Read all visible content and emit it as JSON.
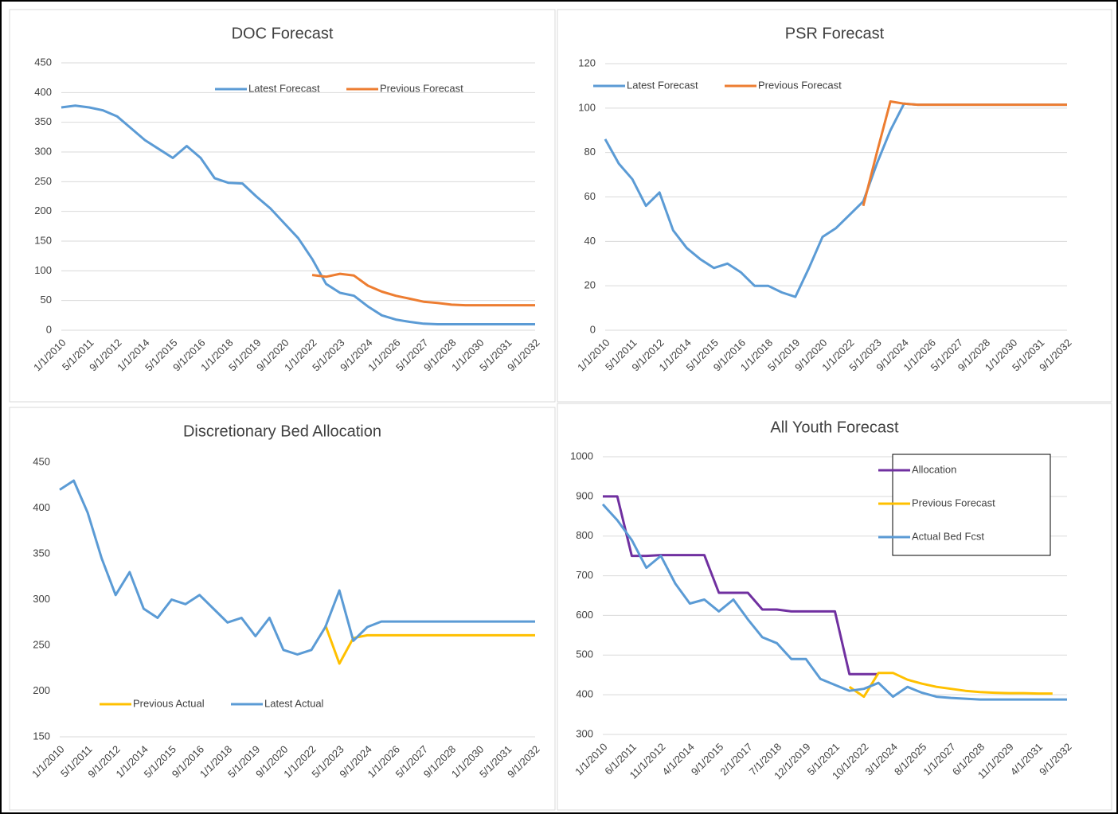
{
  "chart_data": [
    {
      "type": "line",
      "title": "DOC Forecast",
      "categories": [
        "1/1/2010",
        null,
        "5/1/2011",
        null,
        "9/1/2012",
        null,
        "1/1/2014",
        null,
        "5/1/2015",
        null,
        "9/1/2016",
        null,
        "1/1/2018",
        null,
        "5/1/2019",
        null,
        "9/1/2020",
        null,
        "1/1/2022",
        null,
        "5/1/2023",
        null,
        "9/1/2024",
        null,
        "1/1/2026",
        null,
        "5/1/2027",
        null,
        "9/1/2028",
        null,
        "1/1/2030",
        null,
        "5/1/2031",
        null,
        "9/1/2032"
      ],
      "series": [
        {
          "name": "Latest Forecast",
          "color": "#5b9bd5",
          "values": [
            375,
            378,
            375,
            370,
            360,
            340,
            320,
            305,
            290,
            310,
            290,
            256,
            248,
            247,
            225,
            205,
            180,
            155,
            120,
            78,
            63,
            58,
            40,
            25,
            18,
            14,
            11,
            10,
            10,
            10,
            10,
            10,
            10,
            10,
            10
          ]
        },
        {
          "name": "Previous Forecast",
          "color": "#ed7d31",
          "values": [
            null,
            null,
            null,
            null,
            null,
            null,
            null,
            null,
            null,
            null,
            null,
            null,
            null,
            null,
            null,
            null,
            null,
            null,
            93,
            90,
            95,
            92,
            75,
            65,
            58,
            53,
            48,
            46,
            43,
            42,
            42,
            42,
            42,
            42,
            42
          ]
        }
      ],
      "ylim": [
        0,
        450
      ],
      "yticks": [
        0,
        50,
        100,
        150,
        200,
        250,
        300,
        350,
        400,
        450
      ],
      "grid": true,
      "legend": "top-right"
    },
    {
      "type": "line",
      "title": "PSR Forecast",
      "categories": [
        "1/1/2010",
        null,
        "5/1/2011",
        null,
        "9/1/2012",
        null,
        "1/1/2014",
        null,
        "5/1/2015",
        null,
        "9/1/2016",
        null,
        "1/1/2018",
        null,
        "5/1/2019",
        null,
        "9/1/2020",
        null,
        "1/1/2022",
        null,
        "5/1/2023",
        null,
        "9/1/2024",
        null,
        "1/1/2026",
        null,
        "5/1/2027",
        null,
        "9/1/2028",
        null,
        "1/1/2030",
        null,
        "5/1/2031",
        null,
        "9/1/2032"
      ],
      "series": [
        {
          "name": "Latest Forecast",
          "color": "#5b9bd5",
          "values": [
            86,
            75,
            68,
            56,
            62,
            45,
            37,
            32,
            28,
            30,
            26,
            20,
            20,
            17,
            15,
            28,
            42,
            46,
            52,
            58,
            75,
            90,
            102,
            101.5,
            101.5,
            101.5,
            101.5,
            101.5,
            101.5,
            101.5,
            101.5,
            101.5,
            101.5,
            101.5,
            101.5
          ]
        },
        {
          "name": "Previous Forecast",
          "color": "#ed7d31",
          "values": [
            null,
            null,
            null,
            null,
            null,
            null,
            null,
            null,
            null,
            null,
            null,
            null,
            null,
            null,
            null,
            null,
            null,
            null,
            null,
            56,
            80,
            103,
            102,
            101.5,
            101.5,
            101.5,
            101.5,
            101.5,
            101.5,
            101.5,
            101.5,
            101.5,
            101.5,
            101.5,
            101.5
          ]
        }
      ],
      "ylim": [
        0,
        120
      ],
      "yticks": [
        0,
        20,
        40,
        60,
        80,
        100,
        120
      ],
      "grid": true,
      "legend": "top-left"
    },
    {
      "type": "line",
      "title": "Discretionary Bed Allocation",
      "categories": [
        "1/1/2010",
        null,
        "5/1/2011",
        null,
        "9/1/2012",
        null,
        "1/1/2014",
        null,
        "5/1/2015",
        null,
        "9/1/2016",
        null,
        "1/1/2018",
        null,
        "5/1/2019",
        null,
        "9/1/2020",
        null,
        "1/1/2022",
        null,
        "5/1/2023",
        null,
        "9/1/2024",
        null,
        "1/1/2026",
        null,
        "5/1/2027",
        null,
        "9/1/2028",
        null,
        "1/1/2030",
        null,
        "5/1/2031",
        null,
        "9/1/2032"
      ],
      "series": [
        {
          "name": "Previous Actual",
          "color": "#ffc000",
          "values": [
            null,
            null,
            null,
            null,
            null,
            null,
            null,
            null,
            null,
            null,
            null,
            null,
            null,
            null,
            null,
            null,
            null,
            null,
            null,
            272,
            230,
            258,
            261,
            261,
            261,
            261,
            261,
            261,
            261,
            261,
            261,
            261,
            261,
            261,
            261
          ]
        },
        {
          "name": "Latest Actual",
          "color": "#5b9bd5",
          "values": [
            420,
            430,
            395,
            345,
            305,
            330,
            290,
            280,
            300,
            295,
            305,
            290,
            275,
            280,
            260,
            280,
            245,
            240,
            245,
            270,
            310,
            255,
            270,
            276,
            276,
            276,
            276,
            276,
            276,
            276,
            276,
            276,
            276,
            276,
            276
          ]
        }
      ],
      "ylim": [
        150,
        450
      ],
      "yticks": [
        150,
        200,
        250,
        300,
        350,
        400,
        450
      ],
      "grid": false,
      "legend": "bottom"
    },
    {
      "type": "line",
      "title": "All Youth Forecast",
      "categories": [
        "1/1/2010",
        null,
        "6/1/2011",
        null,
        "11/1/2012",
        null,
        "4/1/2014",
        null,
        "9/1/2015",
        null,
        "2/1/2017",
        null,
        "7/1/2018",
        null,
        "12/1/2019",
        null,
        "5/1/2021",
        null,
        "10/1/2022",
        null,
        "3/1/2024",
        null,
        "8/1/2025",
        null,
        "1/1/2027",
        null,
        "6/1/2028",
        null,
        "11/1/2029",
        null,
        "4/1/2031",
        null,
        "9/1/2032"
      ],
      "series": [
        {
          "name": "Allocation",
          "color": "#7030a0",
          "values": [
            900,
            900,
            750,
            750,
            752,
            752,
            752,
            752,
            657,
            657,
            657,
            615,
            615,
            610,
            610,
            610,
            610,
            452,
            452,
            452,
            null,
            null,
            null,
            null,
            null,
            null,
            null,
            null,
            null,
            null,
            null,
            null,
            null
          ]
        },
        {
          "name": "Previous Forecast",
          "color": "#ffc000",
          "values": [
            null,
            null,
            null,
            null,
            null,
            null,
            null,
            null,
            null,
            null,
            null,
            null,
            null,
            null,
            null,
            null,
            null,
            420,
            395,
            455,
            455,
            438,
            428,
            420,
            415,
            410,
            407,
            405,
            404,
            404,
            403,
            403,
            null
          ]
        },
        {
          "name": "Actual Bed Fcst",
          "color": "#5b9bd5",
          "values": [
            880,
            840,
            790,
            720,
            750,
            680,
            630,
            640,
            610,
            640,
            590,
            545,
            530,
            490,
            490,
            440,
            425,
            410,
            415,
            430,
            395,
            420,
            405,
            395,
            392,
            390,
            388,
            388,
            388,
            388,
            388,
            388,
            388
          ]
        }
      ],
      "ylim": [
        300,
        1000
      ],
      "yticks": [
        300,
        400,
        500,
        600,
        700,
        800,
        900,
        1000
      ],
      "grid": true,
      "legend": "right"
    }
  ]
}
